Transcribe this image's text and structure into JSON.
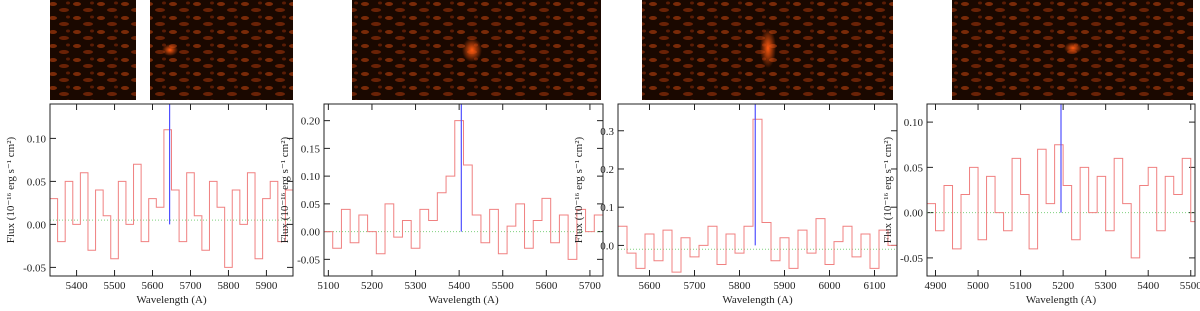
{
  "chart_data": [
    {
      "type": "step",
      "xlabel": "Wavelength (A)",
      "ylabel": "Flux (10⁻¹⁶ erg s⁻¹ cm²)",
      "color": "#f08080",
      "vline": 5645,
      "vline_color": "#5050ff",
      "baseline": 0.005,
      "baseline_color": "#7fd17f",
      "xlim": [
        5330,
        5970
      ],
      "xticks": [
        5400,
        5500,
        5600,
        5700,
        5800,
        5900
      ],
      "ylim": [
        -0.06,
        0.14
      ],
      "yticks": [
        -0.05,
        {
          "value": 0,
          "label": "0.00"
        },
        0.05,
        {
          "value": 0.1,
          "label": "0.10"
        }
      ],
      "x": [
        5340,
        5360,
        5380,
        5400,
        5420,
        5440,
        5460,
        5480,
        5500,
        5520,
        5540,
        5560,
        5580,
        5600,
        5620,
        5640,
        5660,
        5680,
        5700,
        5720,
        5740,
        5760,
        5780,
        5800,
        5820,
        5840,
        5860,
        5880,
        5900,
        5920,
        5940,
        5960
      ],
      "values": [
        0.03,
        -0.02,
        0.05,
        0.0,
        0.06,
        -0.03,
        0.04,
        0.01,
        -0.04,
        0.05,
        0.0,
        0.07,
        -0.02,
        0.03,
        0.02,
        0.11,
        0.04,
        -0.02,
        0.06,
        0.01,
        -0.03,
        0.05,
        0.02,
        -0.05,
        0.04,
        0.0,
        0.06,
        -0.04,
        0.03,
        0.05,
        -0.02,
        0.04
      ]
    },
    {
      "type": "step",
      "xlabel": "Wavelength (A)",
      "ylabel": "Flux (10⁻¹⁶ erg s⁻¹ cm²)",
      "color": "#f08080",
      "vline": 5405,
      "vline_color": "#5050ff",
      "baseline": 0.0,
      "baseline_color": "#7fd17f",
      "xlim": [
        5090,
        5730
      ],
      "xticks": [
        5100,
        5200,
        5300,
        5400,
        5500,
        5600,
        5700
      ],
      "ylim": [
        -0.08,
        0.23
      ],
      "yticks": [
        -0.05,
        {
          "value": 0,
          "label": "0.00"
        },
        0.05,
        {
          "value": 0.1,
          "label": "0.10"
        },
        0.15,
        {
          "value": 0.2,
          "label": "0.20"
        }
      ],
      "x": [
        5100,
        5120,
        5140,
        5160,
        5180,
        5200,
        5220,
        5240,
        5260,
        5280,
        5300,
        5320,
        5340,
        5360,
        5380,
        5400,
        5420,
        5440,
        5460,
        5480,
        5500,
        5520,
        5540,
        5560,
        5580,
        5600,
        5620,
        5640,
        5660,
        5680,
        5700,
        5720
      ],
      "values": [
        0.0,
        -0.03,
        0.04,
        -0.02,
        0.03,
        0.0,
        -0.04,
        0.05,
        -0.01,
        0.02,
        -0.03,
        0.04,
        0.02,
        0.07,
        0.1,
        0.2,
        0.12,
        0.03,
        -0.02,
        0.04,
        -0.04,
        0.01,
        0.05,
        -0.03,
        0.02,
        0.06,
        -0.02,
        0.03,
        -0.05,
        0.04,
        0.0,
        0.03
      ]
    },
    {
      "type": "step",
      "xlabel": "Wavelength (A)",
      "ylabel": "Flux (10⁻¹⁶ erg s⁻¹ cm²)",
      "color": "#f08080",
      "vline": 5835,
      "vline_color": "#5050ff",
      "baseline": -0.01,
      "baseline_color": "#7fd17f",
      "xlim": [
        5530,
        6150
      ],
      "xticks": [
        5600,
        5700,
        5800,
        5900,
        6000,
        6100
      ],
      "ylim": [
        -0.08,
        0.37
      ],
      "yticks": [
        {
          "value": 0,
          "label": "0.0"
        },
        0.1,
        0.2,
        0.3
      ],
      "x": [
        5540,
        5560,
        5580,
        5600,
        5620,
        5640,
        5660,
        5680,
        5700,
        5720,
        5740,
        5760,
        5780,
        5800,
        5820,
        5840,
        5860,
        5880,
        5900,
        5920,
        5940,
        5960,
        5980,
        6000,
        6020,
        6040,
        6060,
        6080,
        6100,
        6120,
        6140
      ],
      "values": [
        0.05,
        -0.02,
        -0.06,
        0.03,
        -0.04,
        0.04,
        -0.07,
        0.02,
        -0.03,
        0.0,
        0.05,
        -0.05,
        0.03,
        -0.02,
        0.05,
        0.33,
        0.06,
        -0.04,
        0.02,
        -0.06,
        0.04,
        -0.02,
        0.07,
        -0.05,
        0.01,
        0.05,
        -0.03,
        0.03,
        -0.06,
        0.04,
        0.0
      ]
    },
    {
      "type": "step",
      "xlabel": "Wavelength (A)",
      "ylabel": "Flux (10⁻¹⁶ erg s⁻¹ cm²)",
      "color": "#f08080",
      "vline": 5195,
      "vline_color": "#5050ff",
      "baseline": 0.0,
      "baseline_color": "#7fd17f",
      "xlim": [
        4880,
        5510
      ],
      "xticks": [
        4900,
        5000,
        5100,
        5200,
        5300,
        5400,
        5500
      ],
      "ylim": [
        -0.07,
        0.12
      ],
      "yticks": [
        -0.05,
        {
          "value": 0,
          "label": "0.00"
        },
        0.05,
        {
          "value": 0.1,
          "label": "0.10"
        }
      ],
      "x": [
        4890,
        4910,
        4930,
        4950,
        4970,
        4990,
        5010,
        5030,
        5050,
        5070,
        5090,
        5110,
        5130,
        5150,
        5170,
        5190,
        5210,
        5230,
        5250,
        5270,
        5290,
        5310,
        5330,
        5350,
        5370,
        5390,
        5410,
        5430,
        5450,
        5470,
        5490,
        5510
      ],
      "values": [
        0.01,
        -0.02,
        0.03,
        -0.04,
        0.02,
        0.05,
        -0.03,
        0.04,
        0.0,
        -0.02,
        0.06,
        0.02,
        -0.04,
        0.07,
        0.01,
        0.075,
        0.03,
        -0.03,
        0.05,
        0.0,
        0.04,
        -0.02,
        0.06,
        0.01,
        -0.05,
        0.03,
        0.05,
        -0.02,
        0.04,
        0.02,
        0.06,
        -0.01
      ]
    }
  ]
}
